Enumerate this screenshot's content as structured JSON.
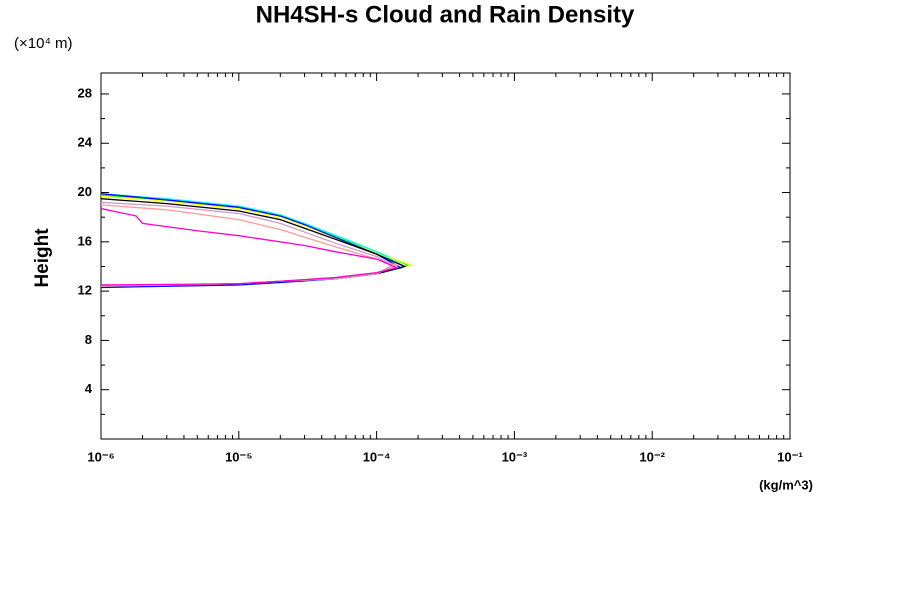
{
  "chart_data": {
    "type": "line",
    "title": "NH4SH-s Cloud and Rain Density",
    "y_unit_label": "(×10⁴ m)",
    "ylabel": "Height",
    "xlabel": "(kg/m^3)",
    "xscale": "log",
    "xlim": [
      1e-06,
      0.1
    ],
    "ylim": [
      0,
      29.7
    ],
    "xticks": [
      {
        "value": 1e-06,
        "label": "10⁻⁶"
      },
      {
        "value": 1e-05,
        "label": "10⁻⁵"
      },
      {
        "value": 0.0001,
        "label": "10⁻⁴"
      },
      {
        "value": 0.001,
        "label": "10⁻³"
      },
      {
        "value": 0.01,
        "label": "10⁻²"
      },
      {
        "value": 0.1,
        "label": "10⁻¹"
      }
    ],
    "xminorticks": [
      2e-06,
      3e-06,
      4e-06,
      5e-06,
      6e-06,
      7e-06,
      8e-06,
      9e-06,
      2e-05,
      3e-05,
      4e-05,
      5e-05,
      6e-05,
      7e-05,
      8e-05,
      9e-05,
      0.0002,
      0.0003,
      0.0004,
      0.0005,
      0.0006,
      0.0007,
      0.0008,
      0.0009,
      0.002,
      0.003,
      0.004,
      0.005,
      0.006,
      0.007,
      0.008,
      0.009,
      0.02,
      0.03,
      0.04,
      0.05,
      0.06,
      0.07,
      0.08,
      0.09
    ],
    "yticks": [
      4,
      8,
      12,
      16,
      20,
      24,
      28
    ],
    "yminorticks": [
      2,
      6,
      10,
      14,
      18,
      22,
      26
    ],
    "series": [
      {
        "color": "#00ff00",
        "x": [
          1e-06,
          3e-06,
          1e-05,
          2e-05,
          3e-05,
          6e-05,
          0.0001,
          0.00017,
          0.0001,
          5e-05,
          2e-05,
          1e-05,
          1e-06
        ],
        "y": [
          19.8,
          19.4,
          18.8,
          18.1,
          17.4,
          16.1,
          15.2,
          14.1,
          13.4,
          13.0,
          12.8,
          12.6,
          12.4
        ]
      },
      {
        "color": "#ffff00",
        "x": [
          1e-06,
          3e-06,
          1e-05,
          2e-05,
          3e-05,
          6e-05,
          0.0001,
          0.00018,
          0.0001,
          5e-05,
          2e-05,
          1e-05,
          1e-06
        ],
        "y": [
          19.7,
          19.3,
          18.7,
          18.0,
          17.3,
          16.0,
          15.1,
          14.1,
          13.5,
          13.1,
          12.8,
          12.6,
          12.3
        ]
      },
      {
        "color": "#00ffff",
        "x": [
          1e-06,
          3e-06,
          1e-05,
          2e-05,
          3e-05,
          6e-05,
          0.0001,
          0.00016,
          0.0001,
          5e-05,
          2e-05,
          1e-05,
          1e-06
        ],
        "y": [
          19.9,
          19.5,
          18.9,
          18.2,
          17.5,
          16.2,
          15.2,
          14.0,
          13.4,
          13.0,
          12.7,
          12.6,
          12.4
        ]
      },
      {
        "color": "#0000ff",
        "x": [
          1e-06,
          3e-06,
          1e-05,
          2e-05,
          3e-05,
          6e-05,
          0.0001,
          0.00015,
          0.0001,
          5e-05,
          2e-05,
          1e-05,
          1e-06
        ],
        "y": [
          19.9,
          19.4,
          18.8,
          18.1,
          17.4,
          16.0,
          15.0,
          13.9,
          13.4,
          13.0,
          12.7,
          12.5,
          12.3
        ]
      },
      {
        "color": "#000000",
        "x": [
          1e-06,
          3e-06,
          1e-05,
          2e-05,
          3e-05,
          6e-05,
          0.0001,
          0.00016,
          0.0001,
          5e-05,
          2e-05,
          1e-05,
          1e-06
        ],
        "y": [
          19.5,
          19.1,
          18.5,
          17.8,
          17.1,
          15.9,
          15.0,
          14.0,
          13.4,
          13.0,
          12.8,
          12.6,
          12.4
        ]
      },
      {
        "color": "#ff9999",
        "x": [
          1e-06,
          3e-06,
          1e-05,
          2e-05,
          5e-05,
          0.0001,
          0.00014,
          0.0001,
          5e-05,
          2e-05,
          1e-05,
          1e-06
        ],
        "y": [
          19.0,
          18.6,
          17.8,
          17.0,
          15.6,
          14.6,
          14.1,
          13.4,
          13.0,
          12.8,
          12.6,
          12.4
        ]
      },
      {
        "color": "#cc99cc",
        "x": [
          1e-06,
          3e-06,
          1e-05,
          2e-05,
          5e-05,
          0.0001,
          0.00013,
          0.0001,
          5e-05,
          2e-05,
          1e-05,
          1e-06
        ],
        "y": [
          19.2,
          18.9,
          18.3,
          17.5,
          15.9,
          14.8,
          14.1,
          13.4,
          13.0,
          12.8,
          12.6,
          12.4
        ]
      },
      {
        "color": "#ff00cc",
        "x": [
          1e-06,
          1.8e-06,
          2e-06,
          5e-06,
          1e-05,
          3e-05,
          5e-05,
          0.0001,
          0.00014,
          0.0001,
          5e-05,
          2e-05,
          1e-05,
          1e-06
        ],
        "y": [
          18.7,
          18.1,
          17.5,
          16.9,
          16.5,
          15.7,
          15.2,
          14.6,
          13.9,
          13.5,
          13.1,
          12.8,
          12.6,
          12.5
        ]
      }
    ]
  }
}
